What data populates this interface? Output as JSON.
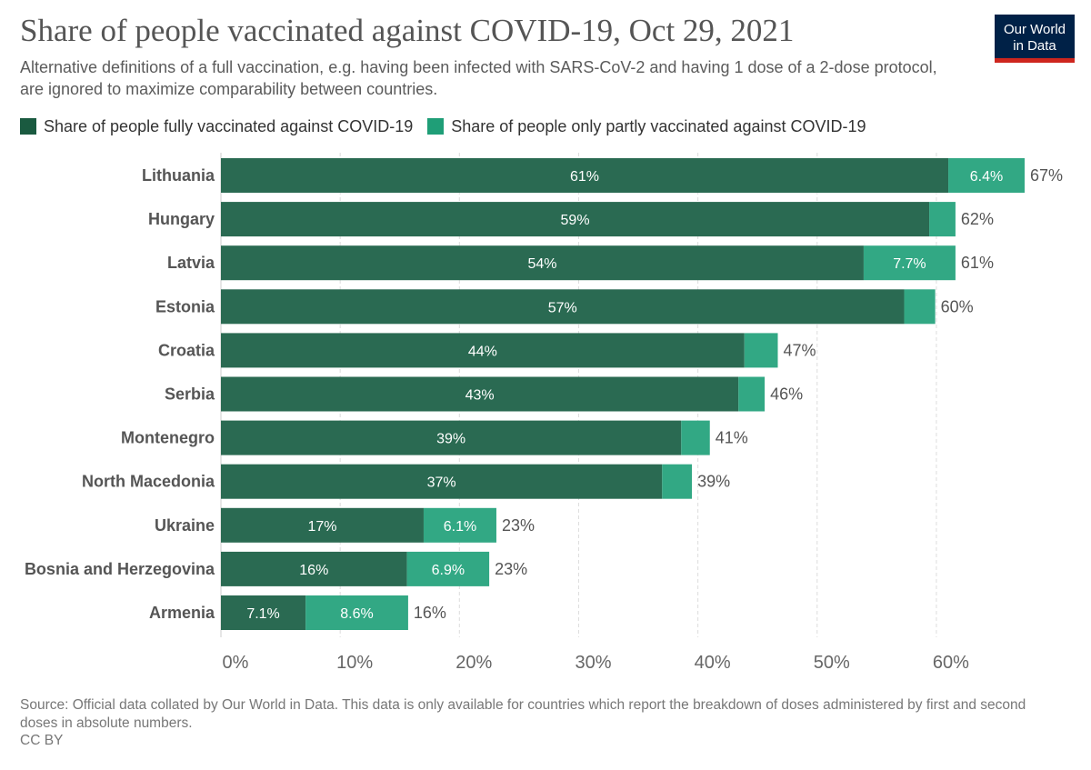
{
  "header": {
    "title": "Share of people vaccinated against COVID-19, Oct 29, 2021",
    "subtitle": "Alternative definitions of a full vaccination, e.g. having been infected with SARS-CoV-2 and having 1 dose of a 2-dose protocol, are ignored to maximize comparability between countries."
  },
  "logo": {
    "line1": "Our World",
    "line2": "in Data"
  },
  "footer": {
    "source": "Source: Official data collated by Our World in Data. This data is only available for countries which report the breakdown of doses administered by first and second doses in absolute numbers.",
    "license": "CC BY"
  },
  "colors": {
    "full": "#2a6a52",
    "partial": "#32a884",
    "legend_full": "#1a5a40",
    "legend_partial": "#1f9e77"
  },
  "chart_data": {
    "type": "bar",
    "orientation": "horizontal",
    "stacked": true,
    "categories": [
      "Lithuania",
      "Hungary",
      "Latvia",
      "Estonia",
      "Croatia",
      "Serbia",
      "Montenegro",
      "North Macedonia",
      "Ukraine",
      "Bosnia and Herzegovina",
      "Armenia"
    ],
    "series": [
      {
        "name": "Share of people fully vaccinated against COVID-19",
        "values": [
          61,
          59.4,
          53.9,
          57.3,
          43.9,
          43.4,
          38.6,
          37,
          17,
          15.6,
          7.1
        ],
        "labels": [
          "61%",
          "59%",
          "54%",
          "57%",
          "44%",
          "43%",
          "39%",
          "37%",
          "17%",
          "16%",
          "7.1%"
        ]
      },
      {
        "name": "Share of people only partly vaccinated against COVID-19",
        "values": [
          6.4,
          2.2,
          7.7,
          2.6,
          2.8,
          2.2,
          2.4,
          2.5,
          6.1,
          6.9,
          8.6
        ],
        "labels": [
          "6.4%",
          "",
          "7.7%",
          "",
          "",
          "",
          "",
          "",
          "6.1%",
          "6.9%",
          "8.6%"
        ]
      }
    ],
    "totals": [
      "67%",
      "62%",
      "61%",
      "60%",
      "47%",
      "46%",
      "41%",
      "39%",
      "23%",
      "23%",
      "16%"
    ],
    "xticks": [
      0,
      10,
      20,
      30,
      40,
      50,
      60
    ],
    "xtick_labels": [
      "0%",
      "10%",
      "20%",
      "30%",
      "40%",
      "50%",
      "60%"
    ],
    "xlim": [
      0,
      67.4
    ],
    "grid": "vertical dashed",
    "legend": "top-left"
  }
}
